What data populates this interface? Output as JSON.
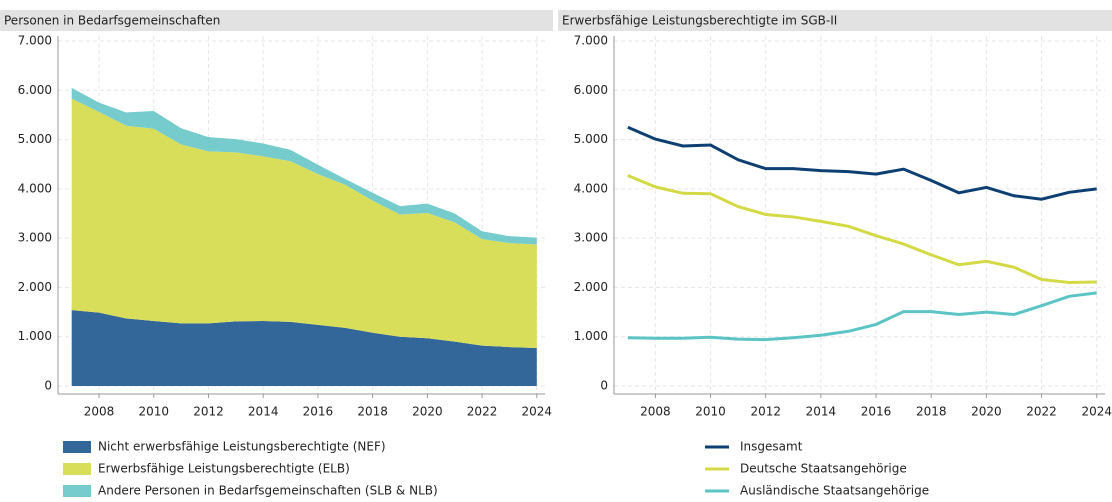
{
  "chart_data": [
    {
      "type": "area",
      "title": "Personen in Bedarfsgemeinschaften",
      "x": [
        2007,
        2008,
        2009,
        2010,
        2011,
        2012,
        2013,
        2014,
        2015,
        2016,
        2017,
        2018,
        2019,
        2020,
        2021,
        2022,
        2023,
        2024
      ],
      "xlim": [
        2006.5,
        2024.3
      ],
      "xticks": [
        2008,
        2010,
        2012,
        2014,
        2016,
        2018,
        2020,
        2022,
        2024
      ],
      "ylim": [
        0,
        7000
      ],
      "yticks": [
        0,
        {
          "value": 1000,
          "label": "1.000"
        },
        {
          "value": 2000,
          "label": "2.000"
        },
        {
          "value": 3000,
          "label": "3.000"
        },
        {
          "value": 4000,
          "label": "4.000"
        },
        {
          "value": 5000,
          "label": "5.000"
        },
        {
          "value": 6000,
          "label": "6.000"
        },
        {
          "value": 7000,
          "label": "7.000"
        }
      ],
      "grid": true,
      "stacked": true,
      "series": [
        {
          "name": "Nicht erwerbsfähige Leistungsberechtigte (NEF)",
          "color": "#336699",
          "values": [
            1540,
            1490,
            1370,
            1320,
            1270,
            1270,
            1310,
            1320,
            1300,
            1240,
            1180,
            1080,
            1000,
            970,
            900,
            820,
            790,
            770
          ]
        },
        {
          "name": "Erwerbsfähige Leistungsberechtigte (ELB)",
          "color": "#d9de5a",
          "values": [
            4290,
            4070,
            3910,
            3900,
            3630,
            3490,
            3430,
            3340,
            3260,
            3060,
            2900,
            2680,
            2480,
            2540,
            2420,
            2160,
            2110,
            2100
          ]
        },
        {
          "name": "Andere Personen in Bedarfsgemeinschaften (SLB & NLB)",
          "color": "#76cccc",
          "values": [
            220,
            190,
            270,
            360,
            330,
            290,
            270,
            260,
            230,
            190,
            120,
            160,
            170,
            190,
            180,
            160,
            140,
            140
          ]
        }
      ]
    },
    {
      "type": "line",
      "title": "Erwerbsfähige Leistungsberechtigte im SGB-II",
      "x": [
        2007,
        2008,
        2009,
        2010,
        2011,
        2012,
        2013,
        2014,
        2015,
        2016,
        2017,
        2018,
        2019,
        2020,
        2021,
        2022,
        2023,
        2024
      ],
      "xlim": [
        2006.5,
        2024.3
      ],
      "xticks": [
        2008,
        2010,
        2012,
        2014,
        2016,
        2018,
        2020,
        2022,
        2024
      ],
      "ylim": [
        0,
        7000
      ],
      "yticks": [
        0,
        {
          "value": 1000,
          "label": "1.000"
        },
        {
          "value": 2000,
          "label": "2.000"
        },
        {
          "value": 3000,
          "label": "3.000"
        },
        {
          "value": 4000,
          "label": "4.000"
        },
        {
          "value": 5000,
          "label": "5.000"
        },
        {
          "value": 6000,
          "label": "6.000"
        },
        {
          "value": 7000,
          "label": "7.000"
        }
      ],
      "grid": true,
      "series": [
        {
          "name": "Insgesamt",
          "color": "#0e3f73",
          "values": [
            5250,
            5010,
            4870,
            4890,
            4590,
            4410,
            4410,
            4370,
            4350,
            4300,
            4400,
            4170,
            3920,
            4030,
            3860,
            3790,
            3930,
            4000
          ]
        },
        {
          "name": "Deutsche Staatsangehörige",
          "color": "#d3da45",
          "values": [
            4270,
            4040,
            3910,
            3900,
            3640,
            3480,
            3430,
            3340,
            3240,
            3050,
            2880,
            2660,
            2460,
            2530,
            2410,
            2160,
            2100,
            2110
          ]
        },
        {
          "name": "Ausländische Staatsangehörige",
          "color": "#5cc4c4",
          "values": [
            980,
            970,
            970,
            990,
            950,
            940,
            980,
            1030,
            1110,
            1250,
            1510,
            1510,
            1450,
            1500,
            1450,
            1630,
            1820,
            1890
          ]
        }
      ]
    }
  ]
}
